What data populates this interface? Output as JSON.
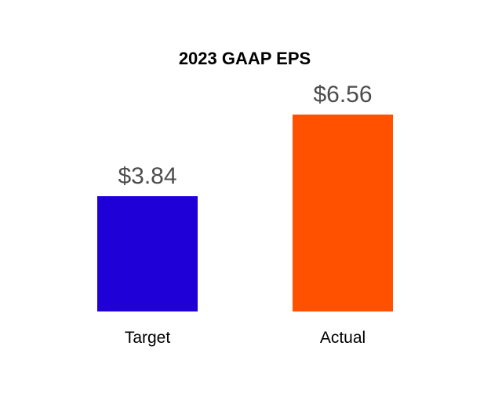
{
  "chart_data": {
    "type": "bar",
    "title": "2023 GAAP EPS",
    "categories": [
      "Target",
      "Actual"
    ],
    "values": [
      3.84,
      6.56
    ],
    "value_labels": [
      "$3.84",
      "$6.56"
    ],
    "colors": [
      "#1f00d7",
      "#ff5100"
    ],
    "ylim": [
      0,
      6.56
    ],
    "grid": false,
    "legend": "none",
    "xlabel": "",
    "ylabel": ""
  }
}
